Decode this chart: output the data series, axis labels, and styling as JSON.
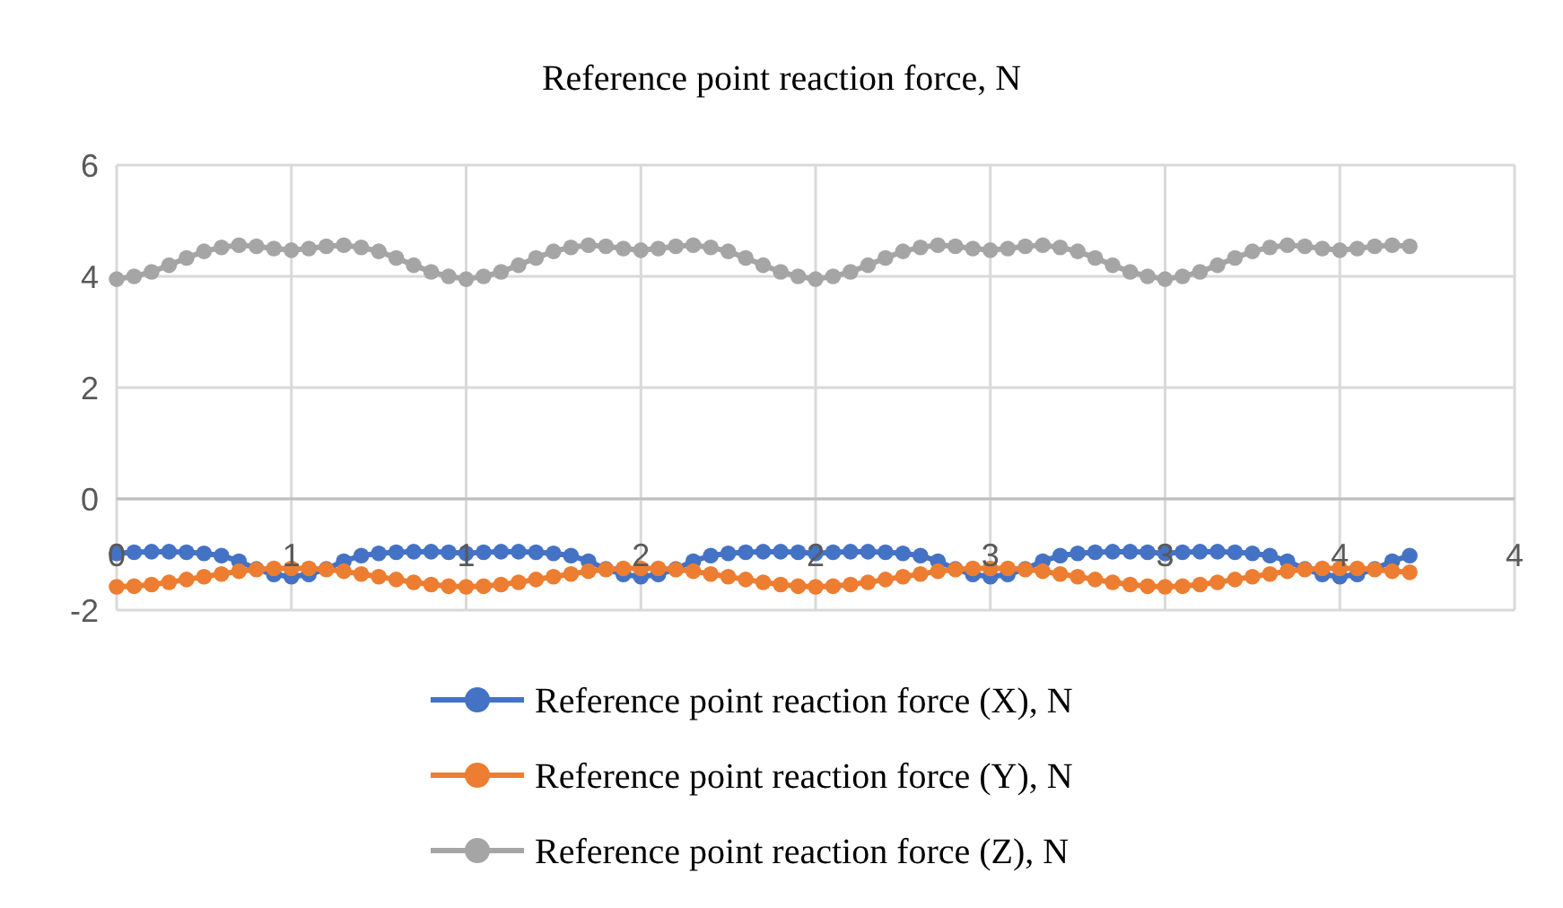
{
  "chart_data": {
    "type": "line",
    "title": "Reference point reaction force, N",
    "x": [
      0,
      0.05,
      0.1,
      0.15,
      0.2,
      0.25,
      0.3,
      0.35,
      0.4,
      0.45,
      0.5,
      0.55,
      0.6,
      0.65,
      0.7,
      0.75,
      0.8,
      0.85,
      0.9,
      0.95,
      1,
      1.05,
      1.1,
      1.15,
      1.2,
      1.25,
      1.3,
      1.35,
      1.4,
      1.45,
      1.5,
      1.55,
      1.6,
      1.65,
      1.7,
      1.75,
      1.8,
      1.85,
      1.9,
      1.95,
      2,
      2.05,
      2.1,
      2.15,
      2.2,
      2.25,
      2.3,
      2.35,
      2.4,
      2.45,
      2.5,
      2.55,
      2.6,
      2.65,
      2.7,
      2.75,
      2.8,
      2.85,
      2.9,
      2.95,
      3,
      3.05,
      3.1,
      3.15,
      3.2,
      3.25,
      3.3,
      3.35,
      3.4,
      3.45,
      3.5,
      3.55,
      3.6,
      3.65,
      3.7
    ],
    "series": [
      {
        "name": "Reference point reaction force (X), N",
        "color": "#4472c4",
        "values": [
          -0.98,
          -0.96,
          -0.95,
          -0.95,
          -0.96,
          -0.98,
          -1.02,
          -1.12,
          -1.26,
          -1.36,
          -1.4,
          -1.36,
          -1.26,
          -1.12,
          -1.02,
          -0.98,
          -0.96,
          -0.95,
          -0.95,
          -0.96,
          -0.98,
          -0.96,
          -0.95,
          -0.95,
          -0.96,
          -0.98,
          -1.02,
          -1.12,
          -1.26,
          -1.36,
          -1.4,
          -1.36,
          -1.26,
          -1.12,
          -1.02,
          -0.98,
          -0.96,
          -0.95,
          -0.95,
          -0.96,
          -0.98,
          -0.96,
          -0.95,
          -0.95,
          -0.96,
          -0.98,
          -1.02,
          -1.12,
          -1.26,
          -1.36,
          -1.4,
          -1.36,
          -1.26,
          -1.12,
          -1.02,
          -0.98,
          -0.96,
          -0.95,
          -0.95,
          -0.96,
          -0.98,
          -0.96,
          -0.95,
          -0.95,
          -0.96,
          -0.98,
          -1.02,
          -1.12,
          -1.26,
          -1.36,
          -1.4,
          -1.36,
          -1.26,
          -1.12,
          -1.02
        ]
      },
      {
        "name": "Reference point reaction force (Y), N",
        "color": "#ed7d31",
        "values": [
          -1.58,
          -1.57,
          -1.54,
          -1.5,
          -1.45,
          -1.4,
          -1.35,
          -1.3,
          -1.27,
          -1.25,
          -1.25,
          -1.25,
          -1.27,
          -1.3,
          -1.35,
          -1.4,
          -1.45,
          -1.5,
          -1.54,
          -1.57,
          -1.58,
          -1.57,
          -1.54,
          -1.5,
          -1.45,
          -1.4,
          -1.35,
          -1.3,
          -1.27,
          -1.25,
          -1.25,
          -1.25,
          -1.27,
          -1.3,
          -1.35,
          -1.4,
          -1.45,
          -1.5,
          -1.54,
          -1.57,
          -1.58,
          -1.57,
          -1.54,
          -1.5,
          -1.45,
          -1.4,
          -1.35,
          -1.3,
          -1.27,
          -1.25,
          -1.25,
          -1.25,
          -1.27,
          -1.3,
          -1.35,
          -1.4,
          -1.45,
          -1.5,
          -1.54,
          -1.57,
          -1.58,
          -1.57,
          -1.54,
          -1.5,
          -1.45,
          -1.4,
          -1.35,
          -1.3,
          -1.27,
          -1.25,
          -1.25,
          -1.25,
          -1.27,
          -1.3,
          -1.32
        ]
      },
      {
        "name": "Reference point reaction force (Z), N",
        "color": "#a5a5a5",
        "values": [
          3.95,
          4.0,
          4.08,
          4.2,
          4.33,
          4.45,
          4.52,
          4.56,
          4.54,
          4.5,
          4.47,
          4.5,
          4.54,
          4.56,
          4.52,
          4.45,
          4.33,
          4.2,
          4.08,
          4.0,
          3.95,
          4.0,
          4.08,
          4.2,
          4.33,
          4.45,
          4.52,
          4.56,
          4.54,
          4.5,
          4.47,
          4.5,
          4.54,
          4.56,
          4.52,
          4.45,
          4.33,
          4.2,
          4.08,
          4.0,
          3.95,
          4.0,
          4.08,
          4.2,
          4.33,
          4.45,
          4.52,
          4.56,
          4.54,
          4.5,
          4.47,
          4.5,
          4.54,
          4.56,
          4.52,
          4.45,
          4.33,
          4.2,
          4.08,
          4.0,
          3.95,
          4.0,
          4.08,
          4.2,
          4.33,
          4.45,
          4.52,
          4.56,
          4.54,
          4.5,
          4.47,
          4.5,
          4.54,
          4.56,
          4.54
        ]
      }
    ],
    "xlim": [
      0,
      4
    ],
    "xticks": [
      0,
      {
        "value": 0.5,
        "label": "1"
      },
      1,
      {
        "value": 1.5,
        "label": "2"
      },
      2,
      {
        "value": 2.5,
        "label": "3"
      },
      3,
      {
        "value": 3.5,
        "label": "4"
      },
      4
    ],
    "ylim": [
      -2,
      6
    ],
    "yticks": [
      -2,
      0,
      2,
      4,
      6
    ],
    "grid": true,
    "legend": "bottom",
    "marker": "circle",
    "line_style": "solid"
  }
}
